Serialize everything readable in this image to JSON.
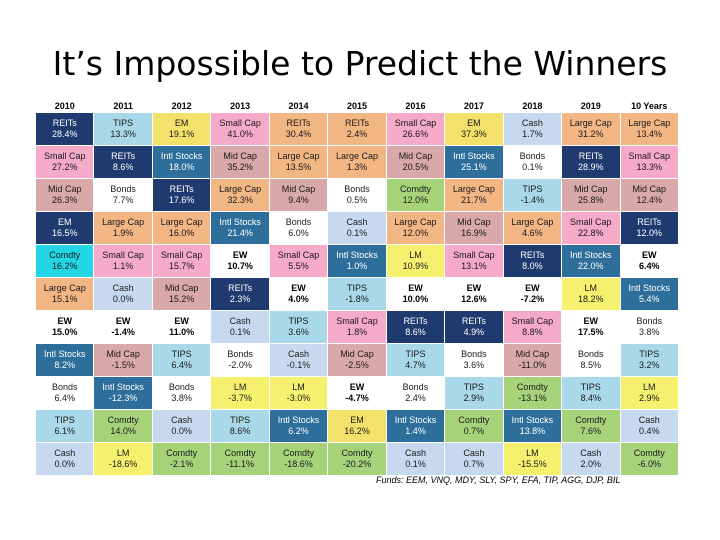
{
  "slide": {
    "title": "It’s Impossible to Predict the Winners"
  },
  "footer": {
    "funds": "Funds: EEM, VNQ, MDY, SLY, SPY, EFA, TIP, AGG, DJP, BIL"
  },
  "colors": {
    "REITs": "#1f3a6e",
    "TIPS": "#a9d8e8",
    "EM": "#f2e16b",
    "Small Cap": "#f4aac8",
    "Large Cap": "#f2b584",
    "Cash": "#c7d9ef",
    "Mid Cap": "#d9a8a8",
    "Intl Stocks": "#2d6e9a",
    "Bonds": "#ffffff",
    "Comdty": "#a6d37a",
    "LM": "#f5f06e",
    "EW": "#ffffff",
    "Small Cap Alt": "#22d6e6"
  },
  "chart_data": {
    "type": "table",
    "title": "It’s Impossible to Predict the Winners",
    "columns": [
      "2010",
      "2011",
      "2012",
      "2013",
      "2014",
      "2015",
      "2016",
      "2017",
      "2018",
      "2019",
      "10 Years"
    ],
    "rows": [
      [
        {
          "name": "REITs",
          "value": "28.4%",
          "style": "REITs"
        },
        {
          "name": "TIPS",
          "value": "13.3%",
          "style": "TIPS"
        },
        {
          "name": "EM",
          "value": "19.1%",
          "style": "EM"
        },
        {
          "name": "Small Cap",
          "value": "41.0%",
          "style": "Small Cap"
        },
        {
          "name": "REITs",
          "value": "30.4%",
          "style": "Large Cap"
        },
        {
          "name": "REITs",
          "value": "2.4%",
          "style": "Large Cap"
        },
        {
          "name": "Small Cap",
          "value": "26.6%",
          "style": "Small Cap"
        },
        {
          "name": "EM",
          "value": "37.3%",
          "style": "EM"
        },
        {
          "name": "Cash",
          "value": "1.7%",
          "style": "Cash"
        },
        {
          "name": "Large Cap",
          "value": "31.2%",
          "style": "Large Cap"
        },
        {
          "name": "Large Cap",
          "value": "13.4%",
          "style": "Large Cap"
        }
      ],
      [
        {
          "name": "Small Cap",
          "value": "27.2%",
          "style": "Small Cap"
        },
        {
          "name": "REITs",
          "value": "8.6%",
          "style": "REITs"
        },
        {
          "name": "Intl Stocks",
          "value": "18.0%",
          "style": "Intl Stocks"
        },
        {
          "name": "Mid Cap",
          "value": "35.2%",
          "style": "Mid Cap"
        },
        {
          "name": "Large Cap",
          "value": "13.5%",
          "style": "Large Cap"
        },
        {
          "name": "Large Cap",
          "value": "1.3%",
          "style": "Large Cap"
        },
        {
          "name": "Mid Cap",
          "value": "20.5%",
          "style": "Mid Cap"
        },
        {
          "name": "Intl Stocks",
          "value": "25.1%",
          "style": "Intl Stocks"
        },
        {
          "name": "Bonds",
          "value": "0.1%",
          "style": "Bonds"
        },
        {
          "name": "REITs",
          "value": "28.9%",
          "style": "REITs"
        },
        {
          "name": "Small Cap",
          "value": "13.3%",
          "style": "Small Cap"
        }
      ],
      [
        {
          "name": "Mid Cap",
          "value": "26.3%",
          "style": "Mid Cap"
        },
        {
          "name": "Bonds",
          "value": "7.7%",
          "style": "Bonds"
        },
        {
          "name": "REITs",
          "value": "17.6%",
          "style": "REITs"
        },
        {
          "name": "Large Cap",
          "value": "32.3%",
          "style": "Large Cap"
        },
        {
          "name": "Mid Cap",
          "value": "9.4%",
          "style": "Mid Cap"
        },
        {
          "name": "Bonds",
          "value": "0.5%",
          "style": "Bonds"
        },
        {
          "name": "Comdty",
          "value": "12.0%",
          "style": "Comdty"
        },
        {
          "name": "Large Cap",
          "value": "21.7%",
          "style": "Large Cap"
        },
        {
          "name": "TIPS",
          "value": "-1.4%",
          "style": "TIPS"
        },
        {
          "name": "Mid Cap",
          "value": "25.8%",
          "style": "Mid Cap"
        },
        {
          "name": "Mid Cap",
          "value": "12.4%",
          "style": "Mid Cap"
        }
      ],
      [
        {
          "name": "EM",
          "value": "16.5%",
          "style": "REITs"
        },
        {
          "name": "Large Cap",
          "value": "1.9%",
          "style": "Large Cap"
        },
        {
          "name": "Large Cap",
          "value": "16.0%",
          "style": "Large Cap"
        },
        {
          "name": "Intl Stocks",
          "value": "21.4%",
          "style": "Intl Stocks"
        },
        {
          "name": "Bonds",
          "value": "6.0%",
          "style": "Bonds"
        },
        {
          "name": "Cash",
          "value": "0.1%",
          "style": "Cash"
        },
        {
          "name": "Large Cap",
          "value": "12.0%",
          "style": "Large Cap"
        },
        {
          "name": "Mid Cap",
          "value": "16.9%",
          "style": "Mid Cap"
        },
        {
          "name": "Large Cap",
          "value": "4.6%",
          "style": "Large Cap"
        },
        {
          "name": "Small Cap",
          "value": "22.8%",
          "style": "Small Cap"
        },
        {
          "name": "REITs",
          "value": "12.0%",
          "style": "REITs"
        }
      ],
      [
        {
          "name": "Comdty",
          "value": "16.2%",
          "style": "Small Cap Alt"
        },
        {
          "name": "Small Cap",
          "value": "1.1%",
          "style": "Small Cap"
        },
        {
          "name": "Small Cap",
          "value": "15.7%",
          "style": "Small Cap"
        },
        {
          "name": "EW",
          "value": "10.7%",
          "style": "EW"
        },
        {
          "name": "Small Cap",
          "value": "5.5%",
          "style": "Small Cap"
        },
        {
          "name": "Intl Stocks",
          "value": "1.0%",
          "style": "Intl Stocks"
        },
        {
          "name": "LM",
          "value": "10.9%",
          "style": "LM"
        },
        {
          "name": "Small Cap",
          "value": "13.1%",
          "style": "Small Cap"
        },
        {
          "name": "REITs",
          "value": "8.0%",
          "style": "REITs"
        },
        {
          "name": "Intl Stocks",
          "value": "22.0%",
          "style": "Intl Stocks"
        },
        {
          "name": "EW",
          "value": "6.4%",
          "style": "EW"
        }
      ],
      [
        {
          "name": "Large Cap",
          "value": "15.1%",
          "style": "Large Cap"
        },
        {
          "name": "Cash",
          "value": "0.0%",
          "style": "Cash"
        },
        {
          "name": "Mid Cap",
          "value": "15.2%",
          "style": "Mid Cap"
        },
        {
          "name": "REITs",
          "value": "2.3%",
          "style": "REITs"
        },
        {
          "name": "EW",
          "value": "4.0%",
          "style": "EW"
        },
        {
          "name": "TIPS",
          "value": "-1.8%",
          "style": "TIPS"
        },
        {
          "name": "EW",
          "value": "10.0%",
          "style": "EW"
        },
        {
          "name": "EW",
          "value": "12.6%",
          "style": "EW"
        },
        {
          "name": "EW",
          "value": "-7.2%",
          "style": "EW"
        },
        {
          "name": "LM",
          "value": "18.2%",
          "style": "LM"
        },
        {
          "name": "Intl Stocks",
          "value": "5.4%",
          "style": "Intl Stocks"
        }
      ],
      [
        {
          "name": "EW",
          "value": "15.0%",
          "style": "EW"
        },
        {
          "name": "EW",
          "value": "-1.4%",
          "style": "EW"
        },
        {
          "name": "EW",
          "value": "11.0%",
          "style": "EW"
        },
        {
          "name": "Cash",
          "value": "0.1%",
          "style": "Cash"
        },
        {
          "name": "TIPS",
          "value": "3.6%",
          "style": "TIPS"
        },
        {
          "name": "Small Cap",
          "value": "1.8%",
          "style": "Small Cap"
        },
        {
          "name": "REITs",
          "value": "8.6%",
          "style": "REITs"
        },
        {
          "name": "REITs",
          "value": "4.9%",
          "style": "REITs"
        },
        {
          "name": "Small Cap",
          "value": "8.8%",
          "style": "Small Cap"
        },
        {
          "name": "EW",
          "value": "17.5%",
          "style": "EW"
        },
        {
          "name": "Bonds",
          "value": "3.8%",
          "style": "Bonds"
        }
      ],
      [
        {
          "name": "Intl Stocks",
          "value": "8.2%",
          "style": "Intl Stocks"
        },
        {
          "name": "Mid Cap",
          "value": "-1.5%",
          "style": "Mid Cap"
        },
        {
          "name": "TIPS",
          "value": "6.4%",
          "style": "TIPS"
        },
        {
          "name": "Bonds",
          "value": "-2.0%",
          "style": "Bonds"
        },
        {
          "name": "Cash",
          "value": "-0.1%",
          "style": "Cash"
        },
        {
          "name": "Mid Cap",
          "value": "-2.5%",
          "style": "Mid Cap"
        },
        {
          "name": "TIPS",
          "value": "4.7%",
          "style": "TIPS"
        },
        {
          "name": "Bonds",
          "value": "3.6%",
          "style": "Bonds"
        },
        {
          "name": "Mid Cap",
          "value": "-11.0%",
          "style": "Mid Cap"
        },
        {
          "name": "Bonds",
          "value": "8.5%",
          "style": "Bonds"
        },
        {
          "name": "TIPS",
          "value": "3.2%",
          "style": "TIPS"
        }
      ],
      [
        {
          "name": "Bonds",
          "value": "6.4%",
          "style": "Bonds"
        },
        {
          "name": "Intl Stocks",
          "value": "-12.3%",
          "style": "Intl Stocks"
        },
        {
          "name": "Bonds",
          "value": "3.8%",
          "style": "Bonds"
        },
        {
          "name": "LM",
          "value": "-3.7%",
          "style": "LM"
        },
        {
          "name": "LM",
          "value": "-3.0%",
          "style": "LM"
        },
        {
          "name": "EW",
          "value": "-4.7%",
          "style": "EW"
        },
        {
          "name": "Bonds",
          "value": "2.4%",
          "style": "Bonds"
        },
        {
          "name": "TIPS",
          "value": "2.9%",
          "style": "TIPS"
        },
        {
          "name": "Comdty",
          "value": "-13.1%",
          "style": "Comdty"
        },
        {
          "name": "TIPS",
          "value": "8.4%",
          "style": "TIPS"
        },
        {
          "name": "LM",
          "value": "2.9%",
          "style": "LM"
        }
      ],
      [
        {
          "name": "TIPS",
          "value": "6.1%",
          "style": "TIPS"
        },
        {
          "name": "Comdty",
          "value": "14.0%",
          "style": "Comdty"
        },
        {
          "name": "Cash",
          "value": "0.0%",
          "style": "Cash"
        },
        {
          "name": "TIPS",
          "value": "8.6%",
          "style": "TIPS"
        },
        {
          "name": "Intl Stocks",
          "value": "6.2%",
          "style": "Intl Stocks"
        },
        {
          "name": "EM",
          "value": "16.2%",
          "style": "EM"
        },
        {
          "name": "Intl Stocks",
          "value": "1.4%",
          "style": "Intl Stocks"
        },
        {
          "name": "Comdty",
          "value": "0.7%",
          "style": "Comdty"
        },
        {
          "name": "Intl Stocks",
          "value": "13.8%",
          "style": "Intl Stocks"
        },
        {
          "name": "Comdty",
          "value": "7.6%",
          "style": "Comdty"
        },
        {
          "name": "Cash",
          "value": "0.4%",
          "style": "Cash"
        }
      ],
      [
        {
          "name": "Cash",
          "value": "0.0%",
          "style": "Cash"
        },
        {
          "name": "LM",
          "value": "-18.6%",
          "style": "LM"
        },
        {
          "name": "Comdty",
          "value": "-2.1%",
          "style": "Comdty"
        },
        {
          "name": "Comdty",
          "value": "-11.1%",
          "style": "Comdty"
        },
        {
          "name": "Comdty",
          "value": "-18.6%",
          "style": "Comdty"
        },
        {
          "name": "Comdty",
          "value": "-20.2%",
          "style": "Comdty"
        },
        {
          "name": "Cash",
          "value": "0.1%",
          "style": "Cash"
        },
        {
          "name": "Cash",
          "value": "0.7%",
          "style": "Cash"
        },
        {
          "name": "LM",
          "value": "-15.5%",
          "style": "LM"
        },
        {
          "name": "Cash",
          "value": "2.0%",
          "style": "Cash"
        },
        {
          "name": "Comdty",
          "value": "-6.0%",
          "style": "Comdty"
        }
      ]
    ]
  }
}
